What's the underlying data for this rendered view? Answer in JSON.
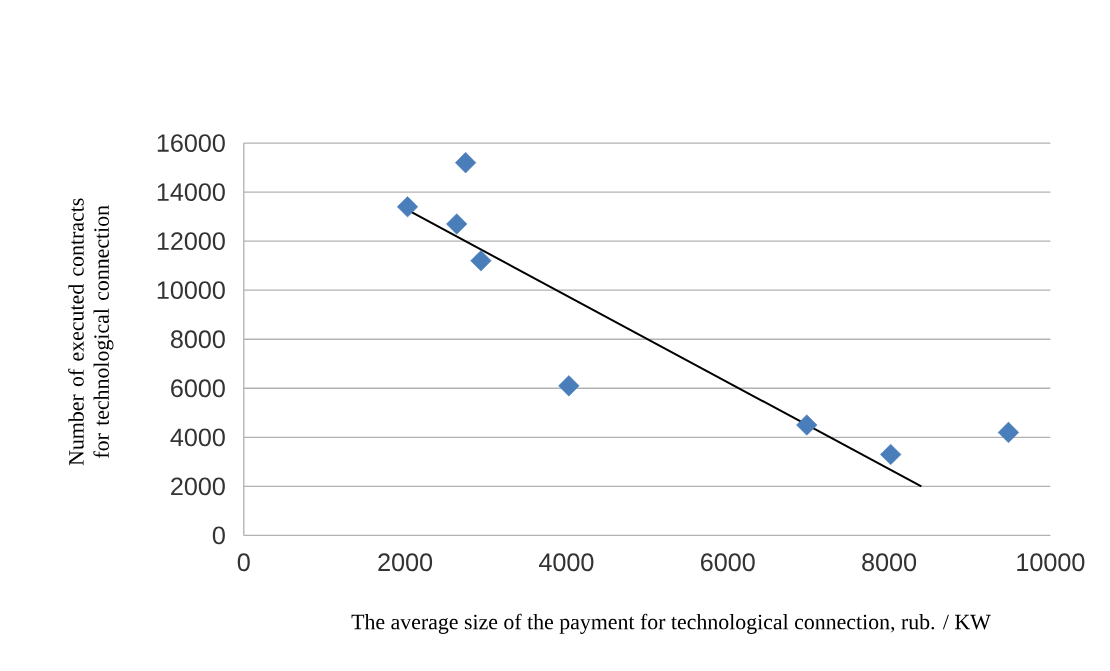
{
  "chart_data": {
    "type": "scatter",
    "xlabel": "The average size of the payment for technological connection, rub. / KW",
    "ylabel": "Number of executed contracts for technological connection",
    "xlim": [
      0,
      10000
    ],
    "ylim": [
      0,
      16000
    ],
    "xticks": [
      0,
      2000,
      4000,
      6000,
      8000,
      10000
    ],
    "yticks": [
      0,
      2000,
      4000,
      6000,
      8000,
      10000,
      12000,
      14000,
      16000
    ],
    "grid": "y",
    "series": [
      {
        "color": "#4a7ebb",
        "marker": "diamond",
        "x": [
          2030,
          2750,
          2640,
          2940,
          4030,
          6980,
          8020,
          9480
        ],
        "values": [
          13400,
          15200,
          12700,
          11200,
          6100,
          4500,
          3300,
          4200
        ]
      },
      {
        "type": "line",
        "color": "#000000",
        "marker": "none",
        "x": [
          2040,
          8400
        ],
        "values": [
          13250,
          2000
        ]
      }
    ]
  }
}
